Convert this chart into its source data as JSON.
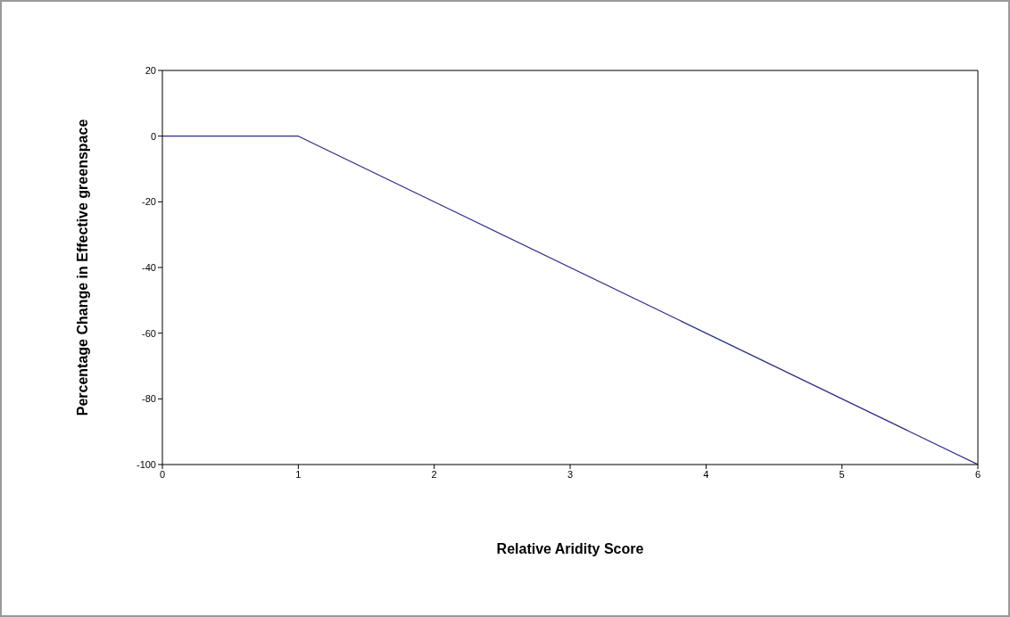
{
  "chart_data": {
    "type": "line",
    "xlabel": "Relative Aridity Score",
    "ylabel": "Percentage Change in Effective greenspace",
    "x": [
      0,
      1,
      6
    ],
    "series": [
      {
        "color": "#2b2b8c",
        "values": [
          0,
          0,
          -100
        ]
      }
    ],
    "xlim": [
      0,
      6
    ],
    "xticks": [
      0,
      1,
      2,
      3,
      4,
      5,
      6
    ],
    "ylim": [
      -100,
      20
    ],
    "yticks": [
      -100,
      -80,
      -60,
      -40,
      -20,
      0,
      20
    ],
    "marker": "none",
    "line_style": "solid"
  }
}
